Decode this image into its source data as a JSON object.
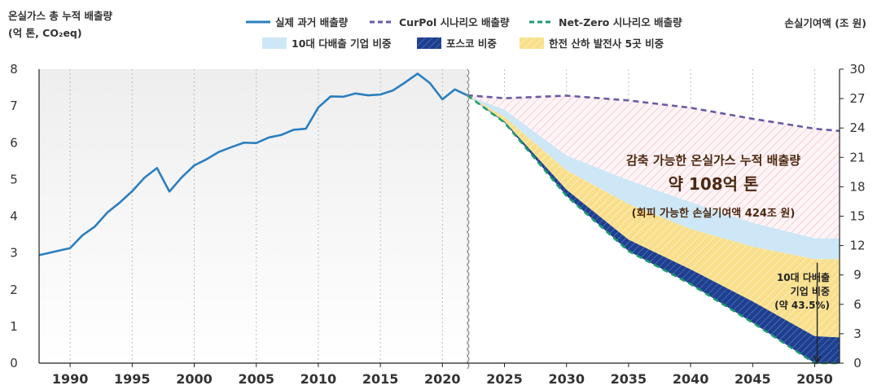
{
  "chart_data": {
    "type": "line",
    "y_left_label": "온실가스 총 누적 배출량",
    "y_left_unit": "(억 톤, CO₂eq)",
    "y_right_label": "손실기여액 (조 원)",
    "ylim_left": [
      0,
      8
    ],
    "ylim_right": [
      0,
      30
    ],
    "y_left_ticks": [
      "0",
      "1",
      "2",
      "3",
      "4",
      "5",
      "6",
      "7",
      "8"
    ],
    "y_right_ticks": [
      "0",
      "3",
      "6",
      "9",
      "12",
      "15",
      "18",
      "21",
      "24",
      "27",
      "30"
    ],
    "xlim": [
      1987.5,
      2052
    ],
    "x_ticks": [
      "1990",
      "1995",
      "2000",
      "2005",
      "2010",
      "2015",
      "2020",
      "2025",
      "2030",
      "2035",
      "2040",
      "2045",
      "2050"
    ],
    "legend": [
      {
        "label": "실제 과거 배출량",
        "kind": "line",
        "color": "#2a7fc0"
      },
      {
        "label": "CurPol 시나리오 배출량",
        "kind": "dash",
        "color": "#6a5aa6"
      },
      {
        "label": "Net-Zero 시나리오 배출량",
        "kind": "dash",
        "color": "#1b9e6e"
      },
      {
        "label": "10대 다배출 기업 비중",
        "kind": "patch",
        "color": "#cde7f6"
      },
      {
        "label": "포스코 비중",
        "kind": "hatch",
        "color": "#1f3f8f"
      },
      {
        "label": "한전 산하 발전사 5곳 비중",
        "kind": "hatch",
        "color": "#f6dc86"
      }
    ],
    "series": [
      {
        "name": "실제 과거 배출량",
        "x": [
          1987.5,
          1990,
          1991,
          1992,
          1993,
          1994,
          1995,
          1996,
          1997,
          1998,
          1999,
          2000,
          2001,
          2002,
          2003,
          2004,
          2005,
          2006,
          2007,
          2008,
          2009,
          2010,
          2011,
          2012,
          2013,
          2014,
          2015,
          2016,
          2017,
          2018,
          2019,
          2020,
          2021,
          2022
        ],
        "y": [
          2.94,
          3.13,
          3.48,
          3.72,
          4.1,
          4.37,
          4.68,
          5.05,
          5.31,
          4.67,
          5.06,
          5.38,
          5.55,
          5.75,
          5.88,
          6.0,
          5.99,
          6.14,
          6.21,
          6.35,
          6.38,
          6.96,
          7.26,
          7.25,
          7.34,
          7.29,
          7.31,
          7.42,
          7.64,
          7.88,
          7.62,
          7.18,
          7.45,
          7.29
        ]
      },
      {
        "name": "CurPol 시나리오 배출량",
        "x": [
          2022,
          2025,
          2030,
          2035,
          2040,
          2045,
          2050,
          2052
        ],
        "y": [
          7.29,
          7.21,
          7.28,
          7.15,
          6.95,
          6.65,
          6.38,
          6.32
        ]
      },
      {
        "name": "Net-Zero 시나리오 배출량",
        "x": [
          2022,
          2025,
          2030,
          2035,
          2040,
          2045,
          2050,
          2052
        ],
        "y": [
          7.29,
          6.55,
          4.55,
          3.05,
          2.15,
          1.1,
          0.0,
          0.0
        ]
      }
    ],
    "bands_top_y": {
      "x": [
        2022,
        2025,
        2030,
        2035,
        2040,
        2045,
        2050,
        2052
      ],
      "ten_emitters": [
        7.29,
        6.9,
        5.65,
        4.98,
        4.38,
        3.82,
        3.4,
        3.4
      ],
      "kepco_gencos": [
        7.29,
        6.7,
        5.25,
        4.33,
        3.65,
        3.17,
        2.83,
        2.83
      ],
      "posco": [
        7.29,
        6.58,
        4.72,
        3.36,
        2.55,
        1.68,
        0.73,
        0.7
      ]
    },
    "annotations": {
      "reducible_title": "감축 가능한 온실가스 누적 배출량",
      "reducible_value": "약 108억 톤",
      "avoidable_loss": "(회피 가능한 손실기여액 424조 원)",
      "ten_share_line1": "10대 다배출",
      "ten_share_line2": "기업 비중",
      "ten_share_line3": "(약 43.5%)"
    }
  }
}
